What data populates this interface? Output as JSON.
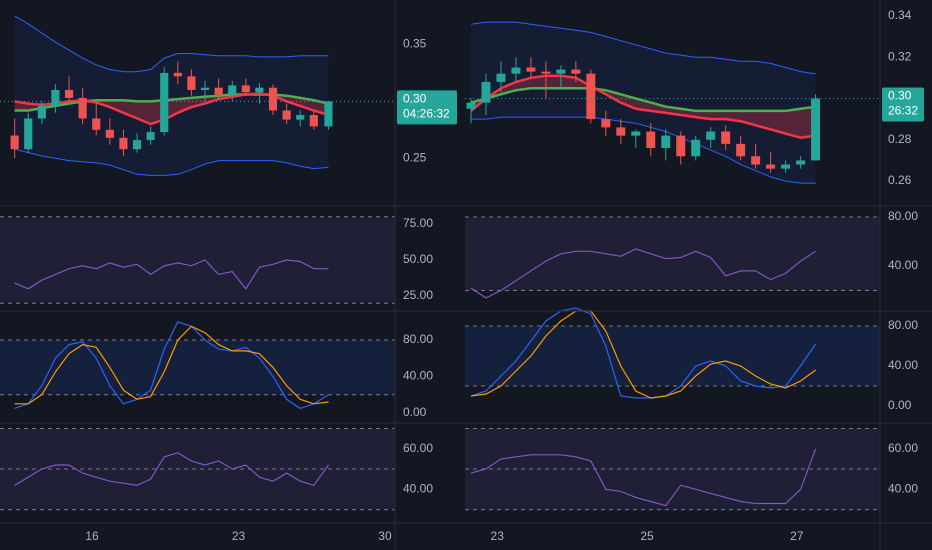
{
  "chart_data": [
    {
      "type": "candlestick",
      "xlim": [
        11.6,
        30.48
      ],
      "ylim": [
        0.209,
        0.389
      ],
      "yticks": [
        0.35,
        0.25
      ],
      "xticks": [
        16,
        23,
        30
      ],
      "x": [
        12.3,
        12.95,
        13.6,
        14.25,
        14.9,
        15.55,
        16.2,
        16.85,
        17.5,
        18.15,
        18.8,
        19.45,
        20.1,
        20.75,
        21.4,
        22.05,
        22.7,
        23.35,
        24.0,
        24.65,
        25.3,
        25.95,
        26.6,
        27.3
      ],
      "open": [
        0.27,
        0.258,
        0.285,
        0.296,
        0.31,
        0.303,
        0.285,
        0.275,
        0.268,
        0.258,
        0.266,
        0.273,
        0.325,
        0.322,
        0.31,
        0.312,
        0.306,
        0.314,
        0.308,
        0.312,
        0.292,
        0.284,
        0.288,
        0.278
      ],
      "high": [
        0.285,
        0.29,
        0.3,
        0.315,
        0.322,
        0.312,
        0.3,
        0.285,
        0.275,
        0.272,
        0.278,
        0.33,
        0.335,
        0.328,
        0.318,
        0.32,
        0.318,
        0.32,
        0.316,
        0.315,
        0.298,
        0.292,
        0.292,
        0.3
      ],
      "low": [
        0.25,
        0.255,
        0.28,
        0.29,
        0.3,
        0.28,
        0.27,
        0.262,
        0.252,
        0.255,
        0.262,
        0.27,
        0.315,
        0.305,
        0.3,
        0.302,
        0.3,
        0.305,
        0.298,
        0.288,
        0.28,
        0.278,
        0.275,
        0.275
      ],
      "close": [
        0.258,
        0.285,
        0.296,
        0.31,
        0.303,
        0.285,
        0.275,
        0.268,
        0.258,
        0.266,
        0.273,
        0.325,
        0.322,
        0.31,
        0.312,
        0.306,
        0.314,
        0.308,
        0.312,
        0.292,
        0.284,
        0.288,
        0.278,
        0.3
      ],
      "up_color": "#26a69a",
      "down_color": "#ef5350",
      "overlays": [
        {
          "color": "#2962ff",
          "values": [
            0.375,
            0.368,
            0.36,
            0.352,
            0.345,
            0.338,
            0.332,
            0.328,
            0.326,
            0.326,
            0.328,
            0.338,
            0.342,
            0.342,
            0.341,
            0.34,
            0.34,
            0.34,
            0.339,
            0.339,
            0.339,
            0.34,
            0.34,
            0.34
          ]
        },
        {
          "color": "#2962ff",
          "values": [
            0.258,
            0.255,
            0.252,
            0.25,
            0.248,
            0.247,
            0.246,
            0.244,
            0.24,
            0.236,
            0.235,
            0.235,
            0.236,
            0.24,
            0.245,
            0.248,
            0.248,
            0.248,
            0.248,
            0.248,
            0.246,
            0.243,
            0.241,
            0.242
          ]
        },
        {
          "color": "#4caf50",
          "values": [
            0.292,
            0.292,
            0.294,
            0.296,
            0.298,
            0.3,
            0.301,
            0.301,
            0.301,
            0.3,
            0.3,
            0.301,
            0.302,
            0.303,
            0.304,
            0.305,
            0.306,
            0.306,
            0.306,
            0.306,
            0.305,
            0.303,
            0.301,
            0.298
          ]
        },
        {
          "color": "#f23645",
          "values": [
            0.3,
            0.298,
            0.297,
            0.298,
            0.3,
            0.301,
            0.299,
            0.295,
            0.29,
            0.285,
            0.28,
            0.284,
            0.29,
            0.295,
            0.298,
            0.302,
            0.304,
            0.306,
            0.307,
            0.305,
            0.3,
            0.296,
            0.292,
            0.288
          ]
        }
      ],
      "last_price": {
        "value": 0.3,
        "label": "0.30"
      },
      "countdown": "04:26:32"
    },
    {
      "type": "line",
      "xlim": [
        11.6,
        30.48
      ],
      "ylim": [
        15.3,
        86.8
      ],
      "yticks": [
        {
          "value": 75,
          "label": "75.00"
        },
        {
          "value": 50,
          "label": "50.00"
        },
        {
          "value": 25,
          "label": "25.00"
        }
      ],
      "bands": [
        20,
        80
      ],
      "band_fill": "#7e57c2",
      "x": [
        12.3,
        12.95,
        13.6,
        14.25,
        14.9,
        15.55,
        16.2,
        16.85,
        17.5,
        18.15,
        18.8,
        19.45,
        20.1,
        20.75,
        21.4,
        22.05,
        22.7,
        23.35,
        24.0,
        24.65,
        25.3,
        25.95,
        26.6,
        27.3
      ],
      "series": [
        {
          "color": "#7e57c2",
          "values": [
            34,
            30,
            36,
            40,
            44,
            46,
            44,
            48,
            45,
            47,
            40,
            46,
            48,
            46,
            50,
            40,
            42,
            30,
            45,
            47,
            50,
            49,
            44,
            44
          ]
        }
      ]
    },
    {
      "type": "line",
      "xlim": [
        11.6,
        30.48
      ],
      "ylim": [
        -9.9,
        110.7
      ],
      "yticks": [
        {
          "value": 80,
          "label": "80.00"
        },
        {
          "value": 40,
          "label": "40.00"
        },
        {
          "value": 0,
          "label": "0.00"
        }
      ],
      "bands": [
        20,
        80
      ],
      "band_fill": "#2962ff",
      "x": [
        12.3,
        12.95,
        13.6,
        14.25,
        14.9,
        15.55,
        16.2,
        16.85,
        17.5,
        18.15,
        18.8,
        19.45,
        20.1,
        20.75,
        21.4,
        22.05,
        22.7,
        23.35,
        24.0,
        24.65,
        25.3,
        25.95,
        26.6,
        27.3
      ],
      "series": [
        {
          "color": "#2962ff",
          "values": [
            5,
            10,
            30,
            60,
            75,
            78,
            60,
            30,
            10,
            15,
            25,
            70,
            100,
            95,
            80,
            70,
            68,
            72,
            60,
            40,
            15,
            5,
            10,
            20
          ]
        },
        {
          "color": "#ff9800",
          "values": [
            10,
            10,
            20,
            45,
            65,
            75,
            72,
            50,
            25,
            15,
            18,
            45,
            80,
            95,
            88,
            75,
            68,
            68,
            65,
            50,
            30,
            15,
            10,
            12
          ]
        }
      ]
    },
    {
      "type": "line",
      "xlim": [
        11.6,
        30.48
      ],
      "ylim": [
        23.9,
        72.2
      ],
      "yticks": [
        {
          "value": 60,
          "label": "60.00"
        },
        {
          "value": 40,
          "label": "40.00"
        }
      ],
      "bands": [
        30,
        50,
        70
      ],
      "band_fill": "#7e57c2",
      "x": [
        12.3,
        12.95,
        13.6,
        14.25,
        14.9,
        15.55,
        16.2,
        16.85,
        17.5,
        18.15,
        18.8,
        19.45,
        20.1,
        20.75,
        21.4,
        22.05,
        22.7,
        23.35,
        24.0,
        24.65,
        25.3,
        25.95,
        26.6,
        27.3
      ],
      "series": [
        {
          "color": "#7e57c2",
          "values": [
            42,
            46,
            50,
            52,
            52,
            48,
            46,
            44,
            43,
            42,
            45,
            56,
            58,
            54,
            52,
            54,
            50,
            52,
            46,
            44,
            48,
            44,
            42,
            52
          ]
        }
      ]
    },
    {
      "type": "candlestick",
      "xlim": [
        22.57,
        28.11
      ],
      "ylim": [
        0.2484,
        0.3477
      ],
      "yticks": [
        0.34,
        0.32,
        0.28,
        0.26
      ],
      "xticks": [
        23,
        25,
        27
      ],
      "x": [
        22.65,
        22.85,
        23.05,
        23.25,
        23.45,
        23.65,
        23.85,
        24.05,
        24.25,
        24.45,
        24.65,
        24.85,
        25.05,
        25.25,
        25.45,
        25.65,
        25.85,
        26.05,
        26.25,
        26.45,
        26.65,
        26.85,
        27.05,
        27.25
      ],
      "open": [
        0.295,
        0.298,
        0.308,
        0.312,
        0.315,
        0.313,
        0.312,
        0.314,
        0.312,
        0.29,
        0.286,
        0.282,
        0.284,
        0.276,
        0.282,
        0.272,
        0.28,
        0.284,
        0.278,
        0.272,
        0.268,
        0.266,
        0.268,
        0.27
      ],
      "high": [
        0.3,
        0.312,
        0.318,
        0.32,
        0.32,
        0.318,
        0.316,
        0.318,
        0.314,
        0.294,
        0.29,
        0.285,
        0.288,
        0.285,
        0.284,
        0.282,
        0.286,
        0.287,
        0.282,
        0.278,
        0.274,
        0.27,
        0.272,
        0.302
      ],
      "low": [
        0.288,
        0.292,
        0.303,
        0.308,
        0.31,
        0.3,
        0.305,
        0.308,
        0.288,
        0.282,
        0.278,
        0.276,
        0.272,
        0.27,
        0.268,
        0.27,
        0.276,
        0.275,
        0.27,
        0.266,
        0.264,
        0.264,
        0.266,
        0.27
      ],
      "close": [
        0.298,
        0.308,
        0.312,
        0.315,
        0.313,
        0.312,
        0.314,
        0.312,
        0.29,
        0.286,
        0.282,
        0.284,
        0.276,
        0.282,
        0.272,
        0.28,
        0.284,
        0.278,
        0.272,
        0.268,
        0.266,
        0.268,
        0.27,
        0.3
      ],
      "up_color": "#26a69a",
      "down_color": "#ef5350",
      "overlays": [
        {
          "color": "#2962ff",
          "values": [
            0.336,
            0.337,
            0.337,
            0.337,
            0.336,
            0.335,
            0.334,
            0.333,
            0.332,
            0.33,
            0.328,
            0.326,
            0.324,
            0.322,
            0.321,
            0.32,
            0.32,
            0.319,
            0.318,
            0.318,
            0.317,
            0.315,
            0.313,
            0.312
          ]
        },
        {
          "color": "#2962ff",
          "values": [
            0.29,
            0.29,
            0.291,
            0.291,
            0.291,
            0.291,
            0.291,
            0.291,
            0.291,
            0.29,
            0.289,
            0.288,
            0.286,
            0.284,
            0.281,
            0.278,
            0.275,
            0.272,
            0.268,
            0.265,
            0.262,
            0.26,
            0.259,
            0.259
          ]
        },
        {
          "color": "#4caf50",
          "values": [
            0.298,
            0.3,
            0.302,
            0.304,
            0.305,
            0.305,
            0.305,
            0.305,
            0.305,
            0.304,
            0.302,
            0.3,
            0.298,
            0.296,
            0.295,
            0.294,
            0.294,
            0.294,
            0.294,
            0.294,
            0.294,
            0.294,
            0.295,
            0.296
          ]
        },
        {
          "color": "#f23645",
          "values": [
            0.294,
            0.3,
            0.305,
            0.308,
            0.31,
            0.311,
            0.311,
            0.31,
            0.306,
            0.302,
            0.298,
            0.295,
            0.294,
            0.293,
            0.292,
            0.291,
            0.29,
            0.29,
            0.289,
            0.287,
            0.285,
            0.283,
            0.281,
            0.282
          ]
        }
      ],
      "last_price": {
        "value": 0.3,
        "label": "0.30"
      },
      "countdown": "26:32"
    },
    {
      "type": "line",
      "xlim": [
        22.57,
        28.11
      ],
      "ylim": [
        4.1,
        88.2
      ],
      "yticks": [
        {
          "value": 80,
          "label": "80.00"
        },
        {
          "value": 40,
          "label": "40.00"
        }
      ],
      "bands": [
        20,
        80
      ],
      "band_fill": "#7e57c2",
      "x": [
        22.65,
        22.85,
        23.05,
        23.25,
        23.45,
        23.65,
        23.85,
        24.05,
        24.25,
        24.45,
        24.65,
        24.85,
        25.05,
        25.25,
        25.45,
        25.65,
        25.85,
        26.05,
        26.25,
        26.45,
        26.65,
        26.85,
        27.05,
        27.25
      ],
      "series": [
        {
          "color": "#7e57c2",
          "values": [
            22,
            14,
            20,
            28,
            36,
            44,
            50,
            52,
            52,
            50,
            48,
            54,
            50,
            46,
            47,
            52,
            47,
            32,
            36,
            36,
            29,
            34,
            44,
            52
          ]
        }
      ]
    },
    {
      "type": "line",
      "xlim": [
        22.57,
        28.11
      ],
      "ylim": [
        -16,
        94
      ],
      "yticks": [
        {
          "value": 80,
          "label": "80.00"
        },
        {
          "value": 40,
          "label": "40.00"
        },
        {
          "value": 0,
          "label": "0.00"
        }
      ],
      "bands": [
        20,
        80
      ],
      "band_fill": "#2962ff",
      "x": [
        22.65,
        22.85,
        23.05,
        23.25,
        23.45,
        23.65,
        23.85,
        24.05,
        24.25,
        24.45,
        24.65,
        24.85,
        25.05,
        25.25,
        25.45,
        25.65,
        25.85,
        26.05,
        26.25,
        26.45,
        26.65,
        26.85,
        27.05,
        27.25
      ],
      "series": [
        {
          "color": "#2962ff",
          "values": [
            10,
            15,
            30,
            45,
            65,
            85,
            95,
            98,
            92,
            60,
            10,
            8,
            8,
            10,
            20,
            40,
            45,
            40,
            25,
            20,
            18,
            20,
            40,
            62
          ]
        },
        {
          "color": "#ff9800",
          "values": [
            10,
            12,
            20,
            35,
            50,
            70,
            85,
            95,
            95,
            75,
            40,
            15,
            8,
            10,
            15,
            30,
            42,
            45,
            40,
            30,
            22,
            18,
            25,
            36
          ]
        }
      ]
    },
    {
      "type": "line",
      "xlim": [
        22.57,
        28.11
      ],
      "ylim": [
        23.9,
        72.2
      ],
      "yticks": [
        {
          "value": 60,
          "label": "60.00"
        },
        {
          "value": 40,
          "label": "40.00"
        }
      ],
      "bands": [
        30,
        50,
        70
      ],
      "band_fill": "#7e57c2",
      "x": [
        22.65,
        22.85,
        23.05,
        23.25,
        23.45,
        23.65,
        23.85,
        24.05,
        24.25,
        24.45,
        24.65,
        24.85,
        25.05,
        25.25,
        25.45,
        25.65,
        25.85,
        26.05,
        26.25,
        26.45,
        26.65,
        26.85,
        27.05,
        27.25
      ],
      "series": [
        {
          "color": "#7e57c2",
          "values": [
            48,
            50,
            55,
            56,
            57,
            57,
            57,
            56,
            54,
            40,
            39,
            36,
            34,
            32,
            42,
            40,
            38,
            36,
            34,
            33,
            33,
            33,
            40,
            60
          ]
        }
      ]
    }
  ]
}
